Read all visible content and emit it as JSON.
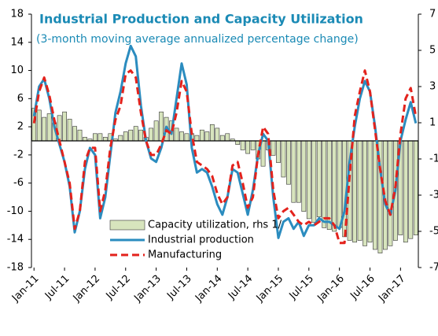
{
  "chart_data": {
    "type": "combo",
    "title": "Industrial Production and Capacity Utilization",
    "subtitle": "(3-month moving average annualized percentage change)",
    "categories": [
      "Jan-11",
      null,
      null,
      null,
      null,
      null,
      "Jul-11",
      null,
      null,
      null,
      null,
      null,
      "Jan-12",
      null,
      null,
      null,
      null,
      null,
      "Jul-12",
      null,
      null,
      null,
      null,
      null,
      "Jan-13",
      null,
      null,
      null,
      null,
      null,
      "Jul-13",
      null,
      null,
      null,
      null,
      null,
      "Jan-14",
      null,
      null,
      null,
      null,
      null,
      "Jul-14",
      null,
      null,
      null,
      null,
      null,
      "Jan-15",
      null,
      null,
      null,
      null,
      null,
      "Jul-15",
      null,
      null,
      null,
      null,
      null,
      "Jan-16",
      null,
      null,
      null,
      null,
      null,
      "Jul-16",
      null,
      null,
      null,
      null,
      null,
      "Jan-17",
      null,
      null,
      null
    ],
    "ylim": [
      -18,
      18
    ],
    "yticks": [
      18,
      14,
      10,
      6,
      2,
      -2,
      -6,
      -10,
      -14,
      -18
    ],
    "y2lim": [
      -7,
      7
    ],
    "y2ticks": [
      7,
      5,
      3,
      1,
      -1,
      -3,
      -5,
      -7
    ],
    "legend": "lower center",
    "series": [
      {
        "name": "Capacity utilization, rhs 1/",
        "type": "bar",
        "axis": "y2",
        "color": "#d7e4bd",
        "values": [
          1.8,
          1.7,
          1.3,
          1.5,
          1.0,
          1.4,
          1.6,
          1.2,
          0.8,
          0.6,
          0.2,
          0.1,
          0.4,
          0.4,
          0.2,
          0.4,
          0.1,
          0.3,
          0.5,
          0.6,
          0.8,
          0.6,
          0.2,
          0.7,
          1.1,
          1.6,
          1.3,
          1.1,
          0.7,
          0.5,
          0.4,
          0.4,
          0.3,
          0.6,
          0.5,
          0.9,
          0.7,
          0.3,
          0.4,
          0.1,
          -0.2,
          -0.5,
          -0.7,
          -0.5,
          -1.0,
          -1.4,
          -0.5,
          -0.8,
          -1.2,
          -2.0,
          -2.4,
          -3.4,
          -3.4,
          -3.9,
          -4.3,
          -4.5,
          -4.2,
          -4.8,
          -4.9,
          -5.0,
          -4.8,
          -5.3,
          -5.5,
          -5.6,
          -5.5,
          -5.8,
          -5.6,
          -6.0,
          -6.2,
          -6.0,
          -5.8,
          -5.5,
          -5.2,
          -5.6,
          -5.4,
          -5.2
        ]
      },
      {
        "name": "Industrial production",
        "type": "line",
        "style": "solid",
        "color": "#2b8cbf",
        "values": [
          3.5,
          7.7,
          8.8,
          6,
          2,
          -0.5,
          -3,
          -6.5,
          -13,
          -10,
          -4,
          -1,
          -2,
          -11,
          -8,
          -2,
          4,
          7,
          11,
          13.5,
          12,
          5,
          0,
          -2.5,
          -3,
          -1,
          2,
          1,
          6,
          11,
          8,
          -1,
          -4.5,
          -4,
          -4.5,
          -6.5,
          -9,
          -10.5,
          -8,
          -4,
          -4.5,
          -7.5,
          -10.5,
          -7,
          -2,
          1,
          0,
          -8,
          -13.8,
          -11.5,
          -11,
          -12.5,
          -11.5,
          -13.5,
          -12,
          -12,
          -11,
          -11.5,
          -11.5,
          -12,
          -12.5,
          -10,
          -3,
          2,
          6,
          8.5,
          7,
          2,
          -4,
          -9,
          -10.5,
          -7,
          0,
          3,
          5.5,
          2.5
        ]
      },
      {
        "name": "Manufacturing",
        "type": "line",
        "style": "dashed",
        "color": "#e3221c",
        "values": [
          2.5,
          7,
          9,
          6.5,
          3,
          0,
          -3,
          -6,
          -12.5,
          -10,
          -3,
          -1,
          -1,
          -10,
          -7,
          -1,
          3,
          5,
          9.5,
          10,
          9,
          4,
          0,
          -2,
          -2,
          -0.5,
          1.5,
          1,
          4,
          8.5,
          7,
          1,
          -3,
          -3.5,
          -4,
          -5,
          -7.5,
          -9,
          -8,
          -3.5,
          -3,
          -6,
          -9.5,
          -8,
          -2,
          2,
          1,
          -7,
          -11,
          -10,
          -9.5,
          -10.5,
          -11.5,
          -12,
          -11.5,
          -12,
          -11.5,
          -11,
          -11,
          -12,
          -14.5,
          -14.5,
          -5,
          3.5,
          7,
          10,
          7,
          1.5,
          -4,
          -8.5,
          -10.5,
          -6.5,
          1,
          6,
          7.5,
          3.5
        ]
      }
    ]
  }
}
